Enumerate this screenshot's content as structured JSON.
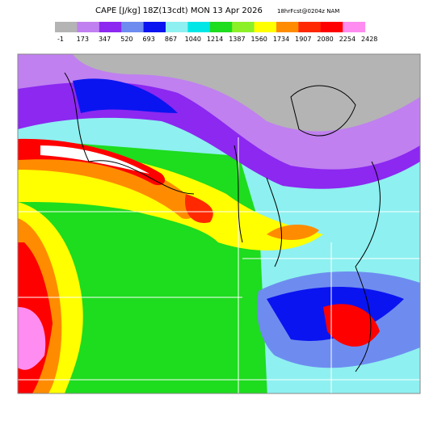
{
  "header": {
    "title": "CAPE [J/kg] 18Z(13cdt) MON 13 Apr 2026",
    "subtitle": "18hrFcst@0204z NAM"
  },
  "colorbar": {
    "labels": [
      -1,
      173,
      347,
      520,
      693,
      867,
      1040,
      1214,
      1387,
      1560,
      1734,
      1907,
      2080,
      2254,
      2428
    ],
    "colors": [
      "#b4b4b4",
      "#c080f0",
      "#8c28f0",
      "#6e8cf0",
      "#0a14f0",
      "#8ef0f0",
      "#00e6e6",
      "#1edc1e",
      "#8cf028",
      "#ffff00",
      "#ff8c00",
      "#ff2800",
      "#ff0000",
      "#ff8cf0"
    ]
  }
}
